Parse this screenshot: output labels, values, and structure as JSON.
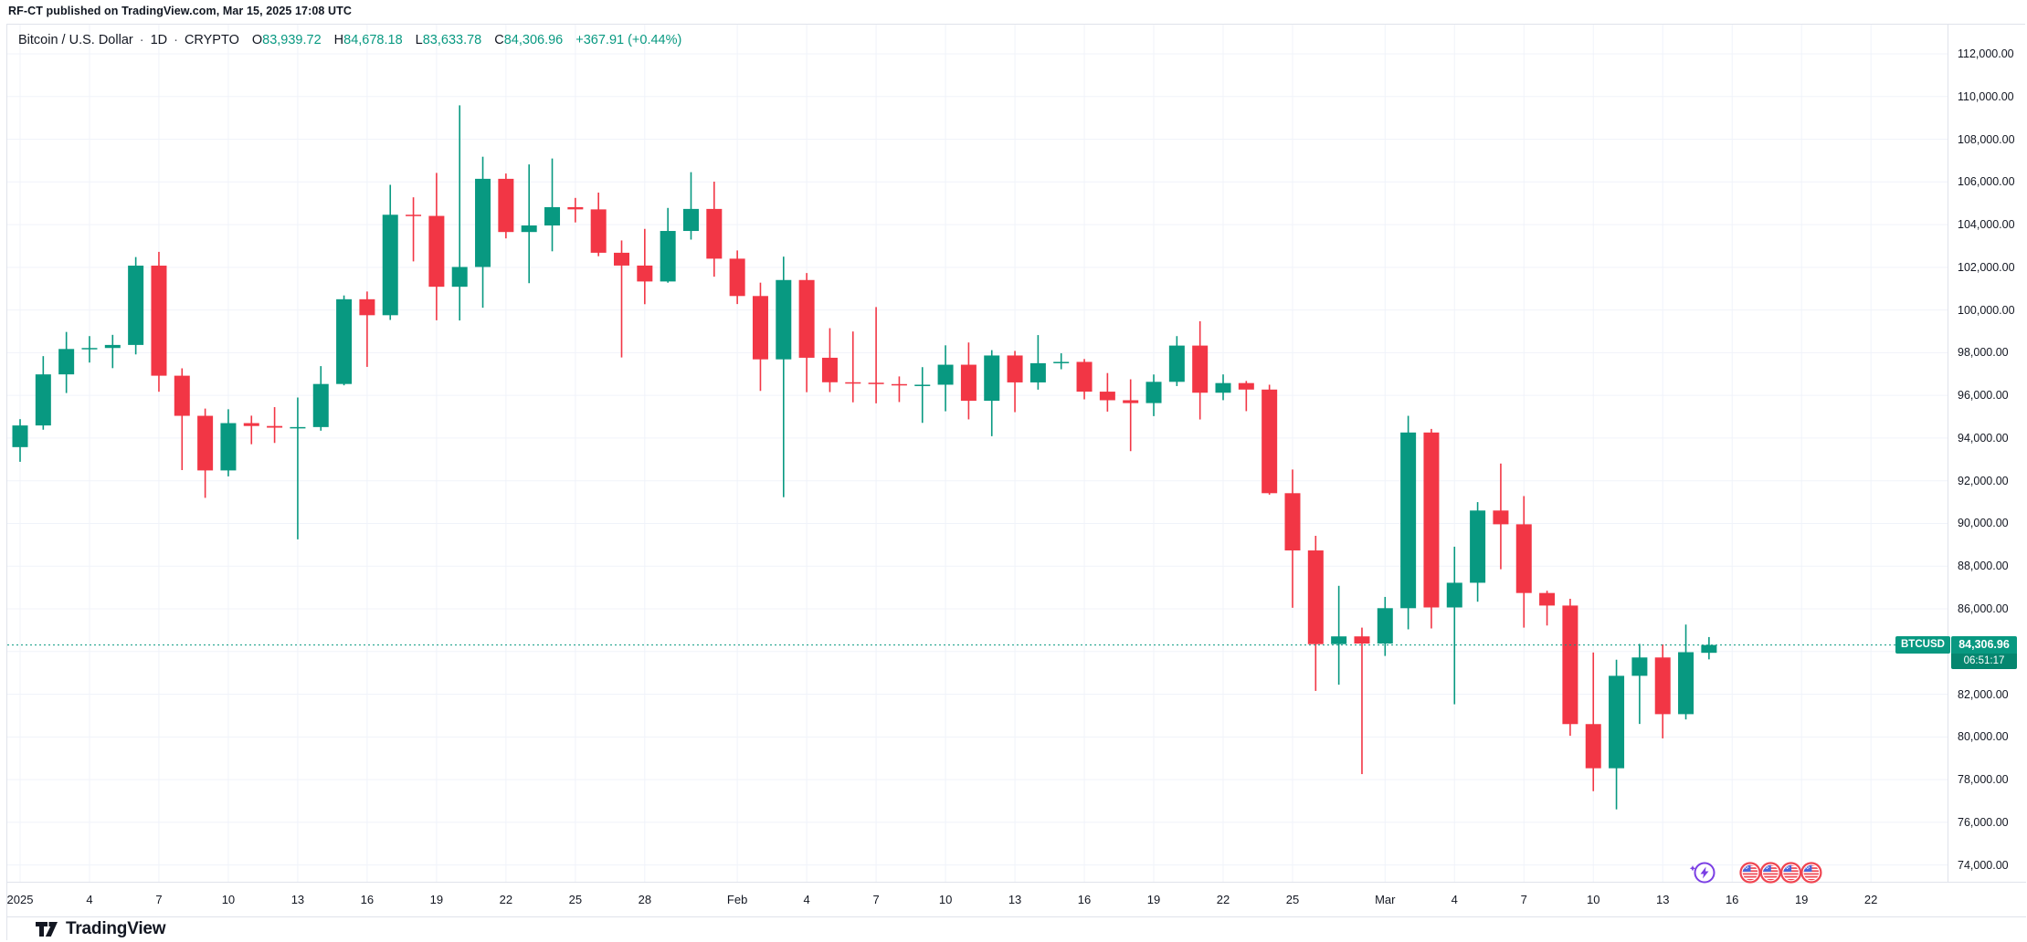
{
  "attribution": "RF-CT published on TradingView.com, Mar 15, 2025 17:08 UTC",
  "legend": {
    "symbol_title": "Bitcoin / U.S. Dollar",
    "separator": "·",
    "interval": "1D",
    "exchange": "CRYPTO",
    "ohlc": {
      "o_label": "O",
      "o": "83,939.72",
      "h_label": "H",
      "h": "84,678.18",
      "l_label": "L",
      "l": "83,633.78",
      "c_label": "C",
      "c": "84,306.96",
      "change": "+367.91 (+0.44%)"
    }
  },
  "price_label": {
    "symbol": "BTCUSD",
    "price": "84,306.96",
    "countdown": "06:51:17",
    "value": 84306.96
  },
  "logo": {
    "text": "TradingView"
  },
  "price_axis": {
    "min": 74000,
    "max": 112000,
    "step": 2000
  },
  "time_axis": {
    "ticks": [
      {
        "label": "2025",
        "day": 0
      },
      {
        "label": "4",
        "day": 3
      },
      {
        "label": "7",
        "day": 6
      },
      {
        "label": "10",
        "day": 9
      },
      {
        "label": "13",
        "day": 12
      },
      {
        "label": "16",
        "day": 15
      },
      {
        "label": "19",
        "day": 18
      },
      {
        "label": "22",
        "day": 21
      },
      {
        "label": "25",
        "day": 24
      },
      {
        "label": "28",
        "day": 27
      },
      {
        "label": "Feb",
        "day": 31
      },
      {
        "label": "4",
        "day": 34
      },
      {
        "label": "7",
        "day": 37
      },
      {
        "label": "10",
        "day": 40
      },
      {
        "label": "13",
        "day": 43
      },
      {
        "label": "16",
        "day": 46
      },
      {
        "label": "19",
        "day": 49
      },
      {
        "label": "22",
        "day": 52
      },
      {
        "label": "25",
        "day": 55
      },
      {
        "label": "Mar",
        "day": 59
      },
      {
        "label": "4",
        "day": 62
      },
      {
        "label": "7",
        "day": 65
      },
      {
        "label": "10",
        "day": 68
      },
      {
        "label": "13",
        "day": 71
      },
      {
        "label": "16",
        "day": 74
      },
      {
        "label": "19",
        "day": 77
      },
      {
        "label": "22",
        "day": 80
      }
    ]
  },
  "events": {
    "markers": [
      {
        "type": "flash",
        "icon": "flash-event-icon"
      },
      {
        "type": "us-flag",
        "icon": "us-economic-event-icon"
      },
      {
        "type": "us-flag",
        "icon": "us-economic-event-icon"
      },
      {
        "type": "us-flag",
        "icon": "us-economic-event-icon"
      },
      {
        "type": "us-flag",
        "icon": "us-economic-event-icon"
      }
    ]
  },
  "colors": {
    "up": "#089981",
    "down": "#f23645",
    "accent": "#089981",
    "grid": "#f0f3fa",
    "axis_text": "#131722",
    "frame_border": "#e0e3eb",
    "event_purple": "#7b3fe4",
    "flag_red": "#ef4551",
    "flag_blue": "#4a66d8",
    "logo_color": "#131722",
    "countdown_bg": "#05866f"
  },
  "chart_data": {
    "type": "candlestick",
    "symbol": "BTCUSD",
    "interval": "1D",
    "ylim": [
      74000,
      112000
    ],
    "grid": true,
    "current_price": 84306.96,
    "fields": [
      "date",
      "open",
      "high",
      "low",
      "close"
    ],
    "candles": [
      [
        "Jan 1",
        93576,
        94887,
        92888,
        94591
      ],
      [
        "Jan 2",
        94591,
        97839,
        94392,
        96984
      ],
      [
        "Jan 3",
        96984,
        98972,
        96111,
        98174
      ],
      [
        "Jan 4",
        98174,
        98778,
        97538,
        98220
      ],
      [
        "Jan 5",
        98220,
        98836,
        97276,
        98363
      ],
      [
        "Jan 6",
        98363,
        102480,
        97920,
        102078
      ],
      [
        "Jan 7",
        102078,
        102724,
        96171,
        96922
      ],
      [
        "Jan 8",
        96922,
        97268,
        92500,
        95043
      ],
      [
        "Jan 9",
        95043,
        95382,
        91200,
        92484
      ],
      [
        "Jan 10",
        92484,
        95350,
        92206,
        94701
      ],
      [
        "Jan 11",
        94701,
        95050,
        93712,
        94566
      ],
      [
        "Jan 12",
        94566,
        95450,
        93772,
        94488
      ],
      [
        "Jan 13",
        94488,
        95900,
        89256,
        94516
      ],
      [
        "Jan 14",
        94516,
        97371,
        94346,
        96534
      ],
      [
        "Jan 15",
        96534,
        100681,
        96471,
        100504
      ],
      [
        "Jan 16",
        100504,
        100866,
        97335,
        99756
      ],
      [
        "Jan 17",
        99756,
        105865,
        99535,
        104462
      ],
      [
        "Jan 18",
        104462,
        105280,
        102277,
        104408
      ],
      [
        "Jan 19",
        104408,
        106422,
        99518,
        101089
      ],
      [
        "Jan 20",
        101089,
        109588,
        99510,
        102016
      ],
      [
        "Jan 21",
        102016,
        107181,
        100106,
        106146
      ],
      [
        "Jan 22",
        106146,
        106394,
        103355,
        103653
      ],
      [
        "Jan 23",
        103653,
        106820,
        101257,
        103960
      ],
      [
        "Jan 24",
        103960,
        107098,
        102750,
        104819
      ],
      [
        "Jan 25",
        104819,
        105251,
        104103,
        104714
      ],
      [
        "Jan 26",
        104714,
        105500,
        102520,
        102682
      ],
      [
        "Jan 27",
        102682,
        103258,
        97777,
        102082
      ],
      [
        "Jan 28",
        102082,
        103800,
        100272,
        101336
      ],
      [
        "Jan 29",
        101336,
        104782,
        101279,
        103703
      ],
      [
        "Jan 30",
        103703,
        106457,
        103298,
        104735
      ],
      [
        "Jan 31",
        104735,
        106012,
        101560,
        102405
      ],
      [
        "Feb 1",
        102405,
        102789,
        100279,
        100655
      ],
      [
        "Feb 2",
        100655,
        101281,
        96210,
        97688
      ],
      [
        "Feb 3",
        97688,
        102500,
        91231,
        101405
      ],
      [
        "Feb 4",
        101405,
        101732,
        96150,
        97763
      ],
      [
        "Feb 5",
        97763,
        99149,
        96155,
        96615
      ],
      [
        "Feb 6",
        96615,
        98993,
        95676,
        96593
      ],
      [
        "Feb 7",
        96593,
        100138,
        95628,
        96529
      ],
      [
        "Feb 8",
        96529,
        96888,
        95688,
        96482
      ],
      [
        "Feb 9",
        96482,
        97323,
        94713,
        96500
      ],
      [
        "Feb 10",
        96500,
        98345,
        95256,
        97437
      ],
      [
        "Feb 11",
        97437,
        98478,
        94876,
        95747
      ],
      [
        "Feb 12",
        95747,
        98120,
        94088,
        97869
      ],
      [
        "Feb 13",
        97869,
        98083,
        95215,
        96608
      ],
      [
        "Feb 14",
        96608,
        98826,
        96269,
        97508
      ],
      [
        "Feb 15",
        97508,
        97972,
        97224,
        97569
      ],
      [
        "Feb 16",
        97569,
        97704,
        95814,
        96175
      ],
      [
        "Feb 17",
        96175,
        97046,
        95240,
        95773
      ],
      [
        "Feb 18",
        95773,
        96753,
        93388,
        95639
      ],
      [
        "Feb 19",
        95639,
        96979,
        95029,
        96635
      ],
      [
        "Feb 20",
        96635,
        98777,
        96437,
        98333
      ],
      [
        "Feb 21",
        98333,
        99475,
        94871,
        96125
      ],
      [
        "Feb 22",
        96125,
        96982,
        95776,
        96577
      ],
      [
        "Feb 23",
        96577,
        96676,
        95261,
        96273
      ],
      [
        "Feb 24",
        96273,
        96500,
        91349,
        91418
      ],
      [
        "Feb 25",
        91418,
        92527,
        86050,
        88736
      ],
      [
        "Feb 26",
        88736,
        89421,
        82156,
        84347
      ],
      [
        "Feb 27",
        84347,
        87078,
        82446,
        84709
      ],
      [
        "Feb 28",
        84709,
        85120,
        78258,
        84373
      ],
      [
        "Mar 1",
        84373,
        86558,
        83794,
        86031
      ],
      [
        "Mar 2",
        86031,
        95043,
        85040,
        94261
      ],
      [
        "Mar 3",
        94261,
        94429,
        85081,
        86065
      ],
      [
        "Mar 4",
        86065,
        88911,
        81529,
        87222
      ],
      [
        "Mar 5",
        87222,
        91000,
        86334,
        90606
      ],
      [
        "Mar 6",
        90606,
        92807,
        87855,
        89961
      ],
      [
        "Mar 7",
        89961,
        91283,
        85120,
        86742
      ],
      [
        "Mar 8",
        86742,
        86847,
        85219,
        86154
      ],
      [
        "Mar 9",
        86154,
        86471,
        80052,
        80601
      ],
      [
        "Mar 10",
        80601,
        83955,
        77459,
        78532
      ],
      [
        "Mar 11",
        78532,
        83617,
        76606,
        82862
      ],
      [
        "Mar 12",
        82862,
        84358,
        80607,
        83722
      ],
      [
        "Mar 13",
        83722,
        84336,
        79931,
        81066
      ],
      [
        "Mar 14",
        81066,
        85263,
        80818,
        83969
      ],
      [
        "Mar 15",
        83939.72,
        84678.18,
        83633.78,
        84306.96
      ]
    ]
  }
}
